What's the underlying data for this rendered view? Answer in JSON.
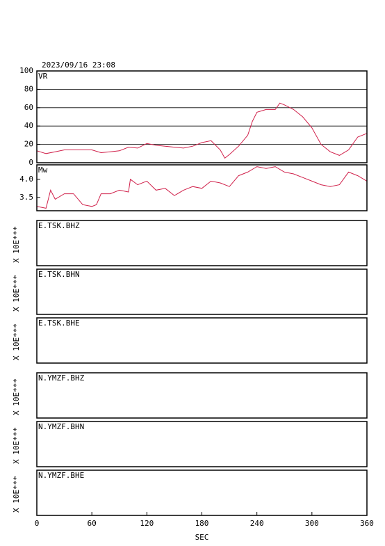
{
  "chart_data": [
    {
      "type": "line",
      "title": "2023/09/16 23:08",
      "label": "VR",
      "xlim": [
        0,
        360
      ],
      "ylim": [
        0,
        100
      ],
      "yticks": [
        0,
        20,
        40,
        60,
        80,
        100
      ],
      "grid": true,
      "series": [
        {
          "color": "#d0204a",
          "x": [
            0,
            10,
            20,
            30,
            40,
            50,
            60,
            70,
            80,
            90,
            100,
            110,
            120,
            130,
            140,
            150,
            160,
            170,
            180,
            190,
            200,
            205,
            210,
            220,
            230,
            235,
            240,
            250,
            260,
            265,
            270,
            280,
            290,
            300,
            310,
            320,
            330,
            340,
            350,
            360
          ],
          "values": [
            13,
            10,
            12,
            14,
            14,
            14,
            14,
            11,
            12,
            13,
            17,
            16,
            21,
            19,
            18,
            17,
            16,
            18,
            22,
            24,
            14,
            5,
            9,
            18,
            30,
            45,
            55,
            58,
            58,
            65,
            63,
            58,
            50,
            38,
            20,
            12,
            8,
            14,
            28,
            32
          ]
        }
      ]
    },
    {
      "type": "line",
      "label": "Mw",
      "xlim": [
        0,
        360
      ],
      "ylim": [
        3.13,
        4.4
      ],
      "yticks": [
        3.5,
        {
          "value": 4,
          "label": "4.0"
        }
      ],
      "grid": false,
      "series": [
        {
          "color": "#d0204a",
          "x": [
            0,
            10,
            15,
            20,
            30,
            40,
            50,
            60,
            65,
            70,
            80,
            90,
            100,
            102,
            110,
            120,
            130,
            140,
            150,
            160,
            170,
            180,
            190,
            200,
            210,
            220,
            230,
            240,
            250,
            260,
            270,
            280,
            290,
            300,
            310,
            320,
            330,
            340,
            350,
            360
          ],
          "values": [
            3.25,
            3.2,
            3.7,
            3.45,
            3.6,
            3.6,
            3.3,
            3.25,
            3.3,
            3.6,
            3.6,
            3.7,
            3.65,
            4.0,
            3.85,
            3.95,
            3.7,
            3.75,
            3.55,
            3.7,
            3.8,
            3.75,
            3.95,
            3.9,
            3.8,
            4.1,
            4.2,
            4.35,
            4.3,
            4.35,
            4.2,
            4.15,
            4.05,
            3.95,
            3.85,
            3.8,
            3.85,
            4.2,
            4.1,
            3.95
          ]
        }
      ]
    },
    {
      "type": "line",
      "label": "E.TSK.BHZ",
      "ylabel": "X 10E***"
    },
    {
      "type": "line",
      "label": "E.TSK.BHN",
      "ylabel": "X 10E***"
    },
    {
      "type": "line",
      "label": "E.TSK.BHE",
      "ylabel": "X 10E***"
    },
    {
      "type": "line",
      "label": "N.YMZF.BHZ",
      "ylabel": "X 10E***"
    },
    {
      "type": "line",
      "label": "N.YMZF.BHN",
      "ylabel": "X 10E***"
    },
    {
      "type": "line",
      "label": "N.YMZF.BHE",
      "ylabel": "X 10E***",
      "xlabel": "SEC",
      "xlim": [
        0,
        360
      ],
      "xticks": [
        0,
        60,
        120,
        180,
        240,
        300,
        360
      ]
    }
  ]
}
